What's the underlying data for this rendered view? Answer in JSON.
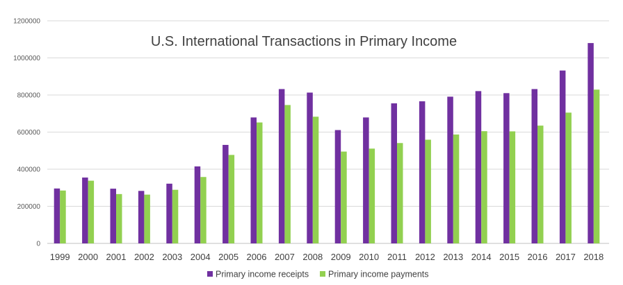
{
  "chart_data": {
    "type": "bar",
    "title": "U.S. International Transactions in Primary Income",
    "xlabel": "",
    "ylabel": "",
    "ylim": [
      0,
      1200000
    ],
    "yticks": [
      0,
      200000,
      400000,
      600000,
      800000,
      1000000,
      1200000
    ],
    "ytick_labels": [
      "0",
      "200000",
      "400000",
      "600000",
      "800000",
      "1000000",
      "1200000"
    ],
    "grid": true,
    "legend_position": "bottom",
    "categories": [
      "1999",
      "2000",
      "2001",
      "2002",
      "2003",
      "2004",
      "2005",
      "2006",
      "2007",
      "2008",
      "2009",
      "2010",
      "2011",
      "2012",
      "2013",
      "2014",
      "2015",
      "2016",
      "2017",
      "2018"
    ],
    "series": [
      {
        "name": "Primary income receipts",
        "color": "#7030a0",
        "values": [
          296000,
          355000,
          295000,
          283000,
          322000,
          415000,
          531000,
          679000,
          832000,
          813000,
          611000,
          679000,
          755000,
          766000,
          791000,
          821000,
          810000,
          832000,
          932000,
          1080000
        ]
      },
      {
        "name": "Primary income payments",
        "color": "#92d050",
        "values": [
          285000,
          338000,
          266000,
          263000,
          289000,
          358000,
          477000,
          652000,
          746000,
          683000,
          495000,
          511000,
          541000,
          559000,
          587000,
          605000,
          604000,
          635000,
          705000,
          829000
        ]
      }
    ]
  }
}
